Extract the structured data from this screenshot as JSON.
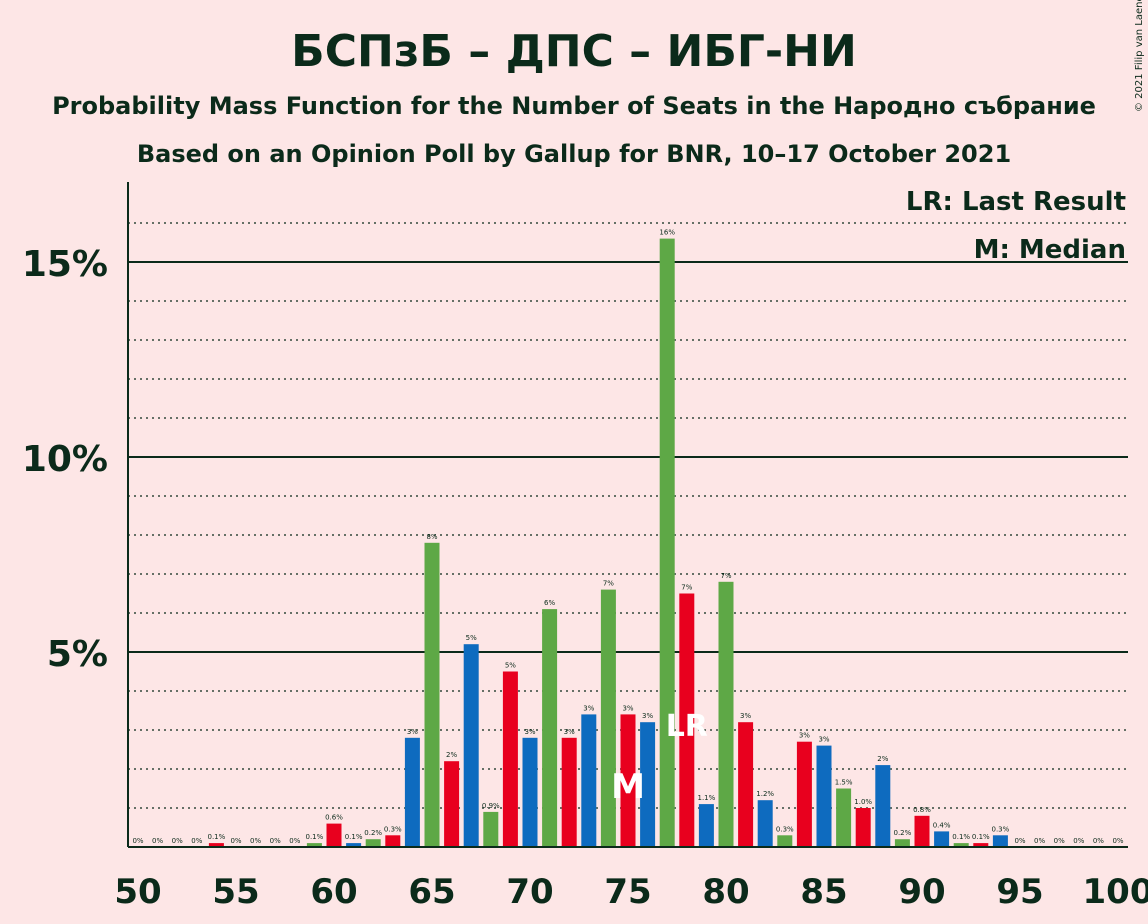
{
  "chart_data": {
    "type": "bar",
    "title": "БСПзБ – ДПС – ИБГ-НИ",
    "subtitle": "Probability Mass Function for the Number of Seats in the Народно събрание",
    "subtitle2": "Based on an Opinion Poll by Gallup for BNR, 10–17 October 2021",
    "copyright": "© 2021 Filip van Laenen",
    "legend": [
      "LR: Last Result",
      "M: Median"
    ],
    "legend_position": "top-right",
    "ylim": [
      0,
      17
    ],
    "y_ticks": [
      {
        "value": 5,
        "label": "5%"
      },
      {
        "value": 10,
        "label": "10%"
      },
      {
        "value": 15,
        "label": "15%"
      }
    ],
    "xlim": [
      50,
      100
    ],
    "x_ticks": [
      50,
      55,
      60,
      65,
      70,
      75,
      80,
      85,
      90,
      95,
      100
    ],
    "median_seat": 75,
    "median_label": "M",
    "last_result_seat": 78,
    "last_result_label": "LR",
    "colors": {
      "green": "#5ea846",
      "blue": "#0e6bbf",
      "red": "#e8001e",
      "text": "#0b2a1a",
      "label_white": "#ffffff"
    },
    "bars": [
      {
        "seat": 50,
        "value": 0,
        "color": "green",
        "label": "0%"
      },
      {
        "seat": 51,
        "value": 0,
        "color": "blue",
        "label": "0%"
      },
      {
        "seat": 52,
        "value": 0,
        "color": "red",
        "label": "0%"
      },
      {
        "seat": 53,
        "value": 0,
        "color": "green",
        "label": "0%"
      },
      {
        "seat": 54,
        "value": 0.1,
        "color": "red",
        "label": "0.1%"
      },
      {
        "seat": 55,
        "value": 0,
        "color": "blue",
        "label": "0%"
      },
      {
        "seat": 56,
        "value": 0,
        "color": "red",
        "label": "0%"
      },
      {
        "seat": 57,
        "value": 0,
        "color": "green",
        "label": "0%"
      },
      {
        "seat": 58,
        "value": 0,
        "color": "blue",
        "label": "0%"
      },
      {
        "seat": 59,
        "value": 0.1,
        "color": "green",
        "label": "0.1%"
      },
      {
        "seat": 60,
        "value": 0.6,
        "color": "red",
        "label": "0.6%"
      },
      {
        "seat": 61,
        "value": 0.1,
        "color": "blue",
        "label": "0.1%"
      },
      {
        "seat": 62,
        "value": 0.2,
        "color": "green",
        "label": "0.2%"
      },
      {
        "seat": 63,
        "value": 0.3,
        "color": "red",
        "label": "0.3%"
      },
      {
        "seat": 64,
        "value": 2.8,
        "color": "blue",
        "label": "3%"
      },
      {
        "seat": 65,
        "value": 7.8,
        "color": "green",
        "label": "8%"
      },
      {
        "seat": 66,
        "value": 2.2,
        "color": "red",
        "label": "2%"
      },
      {
        "seat": 67,
        "value": 5.2,
        "color": "blue",
        "label": "5%"
      },
      {
        "seat": 68,
        "value": 0.9,
        "color": "green",
        "label": "0.9%"
      },
      {
        "seat": 69,
        "value": 4.5,
        "color": "red",
        "label": "5%"
      },
      {
        "seat": 70,
        "value": 2.8,
        "color": "blue",
        "label": "3%"
      },
      {
        "seat": 71,
        "value": 6.1,
        "color": "green",
        "label": "6%"
      },
      {
        "seat": 72,
        "value": 2.8,
        "color": "red",
        "label": "3%"
      },
      {
        "seat": 73,
        "value": 3.4,
        "color": "blue",
        "label": "3%"
      },
      {
        "seat": 74,
        "value": 6.6,
        "color": "green",
        "label": "7%"
      },
      {
        "seat": 75,
        "value": 3.4,
        "color": "red",
        "label": "3%"
      },
      {
        "seat": 76,
        "value": 3.2,
        "color": "blue",
        "label": "3%"
      },
      {
        "seat": 77,
        "value": 15.6,
        "color": "green",
        "label": "16%"
      },
      {
        "seat": 78,
        "value": 6.5,
        "color": "red",
        "label": "7%"
      },
      {
        "seat": 79,
        "value": 1.1,
        "color": "blue",
        "label": "1.1%"
      },
      {
        "seat": 80,
        "value": 6.8,
        "color": "green",
        "label": "7%"
      },
      {
        "seat": 81,
        "value": 3.2,
        "color": "red",
        "label": "3%"
      },
      {
        "seat": 82,
        "value": 1.2,
        "color": "blue",
        "label": "1.2%"
      },
      {
        "seat": 83,
        "value": 0.3,
        "color": "green",
        "label": "0.3%"
      },
      {
        "seat": 84,
        "value": 2.7,
        "color": "red",
        "label": "3%"
      },
      {
        "seat": 85,
        "value": 2.6,
        "color": "blue",
        "label": "3%"
      },
      {
        "seat": 86,
        "value": 1.5,
        "color": "green",
        "label": "1.5%"
      },
      {
        "seat": 87,
        "value": 1.0,
        "color": "red",
        "label": "1.0%"
      },
      {
        "seat": 88,
        "value": 2.1,
        "color": "blue",
        "label": "2%"
      },
      {
        "seat": 89,
        "value": 0.2,
        "color": "green",
        "label": "0.2%"
      },
      {
        "seat": 90,
        "value": 0.8,
        "color": "red",
        "label": "0.8%"
      },
      {
        "seat": 91,
        "value": 0.4,
        "color": "blue",
        "label": "0.4%"
      },
      {
        "seat": 92,
        "value": 0.1,
        "color": "green",
        "label": "0.1%"
      },
      {
        "seat": 93,
        "value": 0.1,
        "color": "red",
        "label": "0.1%"
      },
      {
        "seat": 94,
        "value": 0.3,
        "color": "blue",
        "label": "0.3%"
      },
      {
        "seat": 95,
        "value": 0,
        "color": "green",
        "label": "0%"
      },
      {
        "seat": 96,
        "value": 0,
        "color": "red",
        "label": "0%"
      },
      {
        "seat": 97,
        "value": 0,
        "color": "blue",
        "label": "0%"
      },
      {
        "seat": 98,
        "value": 0,
        "color": "green",
        "label": "0%"
      },
      {
        "seat": 99,
        "value": 0,
        "color": "red",
        "label": "0%"
      },
      {
        "seat": 100,
        "value": 0,
        "color": "blue",
        "label": "0%"
      }
    ]
  }
}
